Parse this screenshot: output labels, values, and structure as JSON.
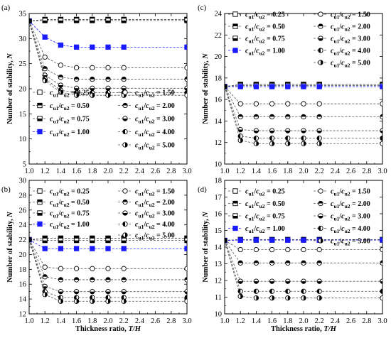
{
  "chart_data": [
    {
      "type": "line",
      "panel_label": "(a)",
      "xlabel": "",
      "ylabel": "Number of stability, N",
      "xlim": [
        1.0,
        3.0
      ],
      "ylim": [
        5,
        35
      ],
      "xticks": [
        "1.0",
        "1.2",
        "1.4",
        "1.6",
        "1.8",
        "2.0",
        "2.2",
        "2.4",
        "2.6",
        "2.8",
        "3.0"
      ],
      "yticks": [
        "5",
        "10",
        "15",
        "20",
        "25",
        "30",
        "35"
      ],
      "x": [
        1.0,
        1.2,
        1.4,
        1.6,
        1.8,
        2.0,
        2.2,
        3.0
      ],
      "legend_position": "bottom-right",
      "series": [
        {
          "name": "0.25",
          "values": [
            33.5,
            33.8,
            33.8,
            33.8,
            33.8,
            33.8,
            33.8,
            33.8
          ]
        },
        {
          "name": "0.50",
          "values": [
            33.5,
            33.8,
            33.8,
            33.8,
            33.8,
            33.8,
            33.8,
            33.8
          ]
        },
        {
          "name": "0.75",
          "values": [
            33.5,
            33.6,
            33.6,
            33.6,
            33.6,
            33.6,
            33.6,
            33.6
          ]
        },
        {
          "name": "1.00",
          "values": [
            33.5,
            30.3,
            28.7,
            28.3,
            28.3,
            28.3,
            28.3,
            28.3
          ]
        },
        {
          "name": "1.50",
          "values": [
            33.5,
            26.3,
            24.7,
            24.2,
            24.2,
            24.2,
            24.2,
            24.2
          ]
        },
        {
          "name": "2.00",
          "values": [
            33.5,
            24.0,
            22.3,
            21.9,
            21.9,
            21.9,
            21.9,
            21.9
          ]
        },
        {
          "name": "3.00",
          "values": [
            33.5,
            22.7,
            20.7,
            20.1,
            20.1,
            20.1,
            20.1,
            20.1
          ]
        },
        {
          "name": "4.00",
          "values": [
            33.5,
            22.0,
            19.7,
            19.2,
            19.2,
            19.2,
            19.2,
            19.2
          ]
        },
        {
          "name": "5.00",
          "values": [
            33.5,
            21.6,
            19.3,
            18.7,
            18.7,
            18.7,
            18.7,
            18.7
          ]
        }
      ]
    },
    {
      "type": "line",
      "panel_label": "(b)",
      "xlabel": "Thickness ratio, T/H",
      "ylabel": "Number of stability, N",
      "xlim": [
        1.0,
        3.0
      ],
      "ylim": [
        12,
        30
      ],
      "xticks": [
        "1.0",
        "1.2",
        "1.4",
        "1.6",
        "1.8",
        "2.0",
        "2.2",
        "2.4",
        "2.6",
        "2.8",
        "3.0"
      ],
      "yticks": [
        "12",
        "14",
        "16",
        "18",
        "20",
        "22",
        "24",
        "26",
        "28",
        "30"
      ],
      "x": [
        1.0,
        1.2,
        1.4,
        1.6,
        1.8,
        2.0,
        2.2,
        3.0
      ],
      "legend_position": "top",
      "series": [
        {
          "name": "0.25",
          "values": [
            22.0,
            22.2,
            22.2,
            22.2,
            22.2,
            22.2,
            22.2,
            22.2
          ]
        },
        {
          "name": "0.50",
          "values": [
            22.0,
            22.2,
            22.2,
            22.2,
            22.2,
            22.2,
            22.2,
            22.2
          ]
        },
        {
          "name": "0.75",
          "values": [
            22.0,
            21.9,
            21.9,
            21.9,
            21.9,
            21.9,
            21.9,
            21.9
          ]
        },
        {
          "name": "1.00",
          "values": [
            22.0,
            20.8,
            20.8,
            20.8,
            20.8,
            20.8,
            20.8,
            20.8
          ]
        },
        {
          "name": "1.50",
          "values": [
            22.0,
            18.3,
            18.1,
            18.1,
            18.1,
            18.1,
            18.1,
            18.1
          ]
        },
        {
          "name": "2.00",
          "values": [
            22.0,
            17.0,
            16.6,
            16.6,
            16.6,
            16.6,
            16.6,
            16.6
          ]
        },
        {
          "name": "3.00",
          "values": [
            22.0,
            15.7,
            15.0,
            15.0,
            15.0,
            15.0,
            15.0,
            15.0
          ]
        },
        {
          "name": "4.00",
          "values": [
            22.0,
            15.0,
            14.2,
            14.2,
            14.2,
            14.2,
            14.2,
            14.2
          ]
        },
        {
          "name": "5.00",
          "values": [
            22.0,
            14.6,
            13.7,
            13.7,
            13.7,
            13.7,
            13.7,
            13.7
          ]
        }
      ]
    },
    {
      "type": "line",
      "panel_label": "(c)",
      "xlabel": "",
      "ylabel": "Number of stability, N",
      "xlim": [
        1.0,
        3.0
      ],
      "ylim": [
        10,
        24
      ],
      "xticks": [
        "1.0",
        "1.2",
        "1.4",
        "1.6",
        "1.8",
        "2.0",
        "2.2",
        "2.4",
        "2.6",
        "2.8",
        "3.0"
      ],
      "yticks": [
        "10",
        "12",
        "14",
        "16",
        "18",
        "20",
        "22",
        "24"
      ],
      "x": [
        1.0,
        1.2,
        1.4,
        1.6,
        1.8,
        2.0,
        2.2,
        3.0
      ],
      "legend_position": "top",
      "series": [
        {
          "name": "0.25",
          "values": [
            17.2,
            17.4,
            17.4,
            17.4,
            17.4,
            17.4,
            17.4,
            17.4
          ]
        },
        {
          "name": "0.50",
          "values": [
            17.2,
            17.4,
            17.4,
            17.4,
            17.4,
            17.4,
            17.4,
            17.4
          ]
        },
        {
          "name": "0.75",
          "values": [
            17.2,
            17.3,
            17.3,
            17.3,
            17.3,
            17.3,
            17.3,
            17.3
          ]
        },
        {
          "name": "1.00",
          "values": [
            17.2,
            17.2,
            17.2,
            17.2,
            17.2,
            17.2,
            17.2,
            17.2
          ]
        },
        {
          "name": "1.50",
          "values": [
            17.2,
            15.6,
            15.6,
            15.6,
            15.6,
            15.6,
            15.6,
            15.6
          ]
        },
        {
          "name": "2.00",
          "values": [
            17.2,
            14.4,
            14.4,
            14.4,
            14.4,
            14.4,
            14.4,
            14.4
          ]
        },
        {
          "name": "3.00",
          "values": [
            17.2,
            13.2,
            13.1,
            13.1,
            13.1,
            13.1,
            13.1,
            13.1
          ]
        },
        {
          "name": "4.00",
          "values": [
            17.2,
            12.6,
            12.4,
            12.4,
            12.4,
            12.4,
            12.4,
            12.4
          ]
        },
        {
          "name": "5.00",
          "values": [
            17.2,
            12.2,
            11.9,
            11.9,
            11.9,
            11.9,
            11.9,
            11.9
          ]
        }
      ]
    },
    {
      "type": "line",
      "panel_label": "(d)",
      "xlabel": "Thickness ratio, T/H",
      "ylabel": "Number of stability, N",
      "xlim": [
        1.0,
        3.0
      ],
      "ylim": [
        10,
        18
      ],
      "xticks": [
        "1.0",
        "1.2",
        "1.4",
        "1.6",
        "1.8",
        "2.0",
        "2.2",
        "2.4",
        "2.6",
        "2.8",
        "3.0"
      ],
      "yticks": [
        "10",
        "11",
        "12",
        "13",
        "14",
        "15",
        "16",
        "17",
        "18"
      ],
      "x": [
        1.0,
        1.2,
        1.4,
        1.6,
        1.8,
        2.0,
        2.2,
        3.0
      ],
      "legend_position": "top",
      "series": [
        {
          "name": "0.25",
          "values": [
            14.4,
            14.45,
            14.45,
            14.45,
            14.45,
            14.45,
            14.45,
            14.45
          ]
        },
        {
          "name": "0.50",
          "values": [
            14.4,
            14.45,
            14.45,
            14.45,
            14.45,
            14.45,
            14.45,
            14.45
          ]
        },
        {
          "name": "0.75",
          "values": [
            14.4,
            14.42,
            14.42,
            14.42,
            14.42,
            14.42,
            14.42,
            14.42
          ]
        },
        {
          "name": "1.00",
          "values": [
            14.4,
            14.42,
            14.42,
            14.42,
            14.42,
            14.42,
            14.42,
            14.42
          ]
        },
        {
          "name": "1.50",
          "values": [
            14.4,
            13.85,
            13.85,
            13.85,
            13.85,
            13.85,
            13.85,
            13.85
          ]
        },
        {
          "name": "2.00",
          "values": [
            14.4,
            13.05,
            13.05,
            13.05,
            13.05,
            13.05,
            13.05,
            13.05
          ]
        },
        {
          "name": "3.00",
          "values": [
            14.4,
            11.95,
            11.95,
            11.95,
            11.95,
            11.95,
            11.95,
            11.95
          ]
        },
        {
          "name": "4.00",
          "values": [
            14.4,
            11.35,
            11.35,
            11.35,
            11.35,
            11.35,
            11.35,
            11.35
          ]
        },
        {
          "name": "5.00",
          "values": [
            14.4,
            11.05,
            10.95,
            10.95,
            10.95,
            10.95,
            10.95,
            10.95
          ]
        }
      ]
    }
  ],
  "legend_label": {
    "c": "c",
    "sub1": "u1",
    "slash": "/",
    "sub2": "u2",
    "eq": " = "
  },
  "marker_styles": [
    "open-square",
    "half-square",
    "half-square-bottom",
    "filled-square",
    "open-circle",
    "half-circle",
    "half-circle-bottom",
    "half-circle-left",
    "half-circle-right"
  ],
  "colors": {
    "highlight": "#1a1aff",
    "line": "#555555",
    "axis": "#000000"
  }
}
